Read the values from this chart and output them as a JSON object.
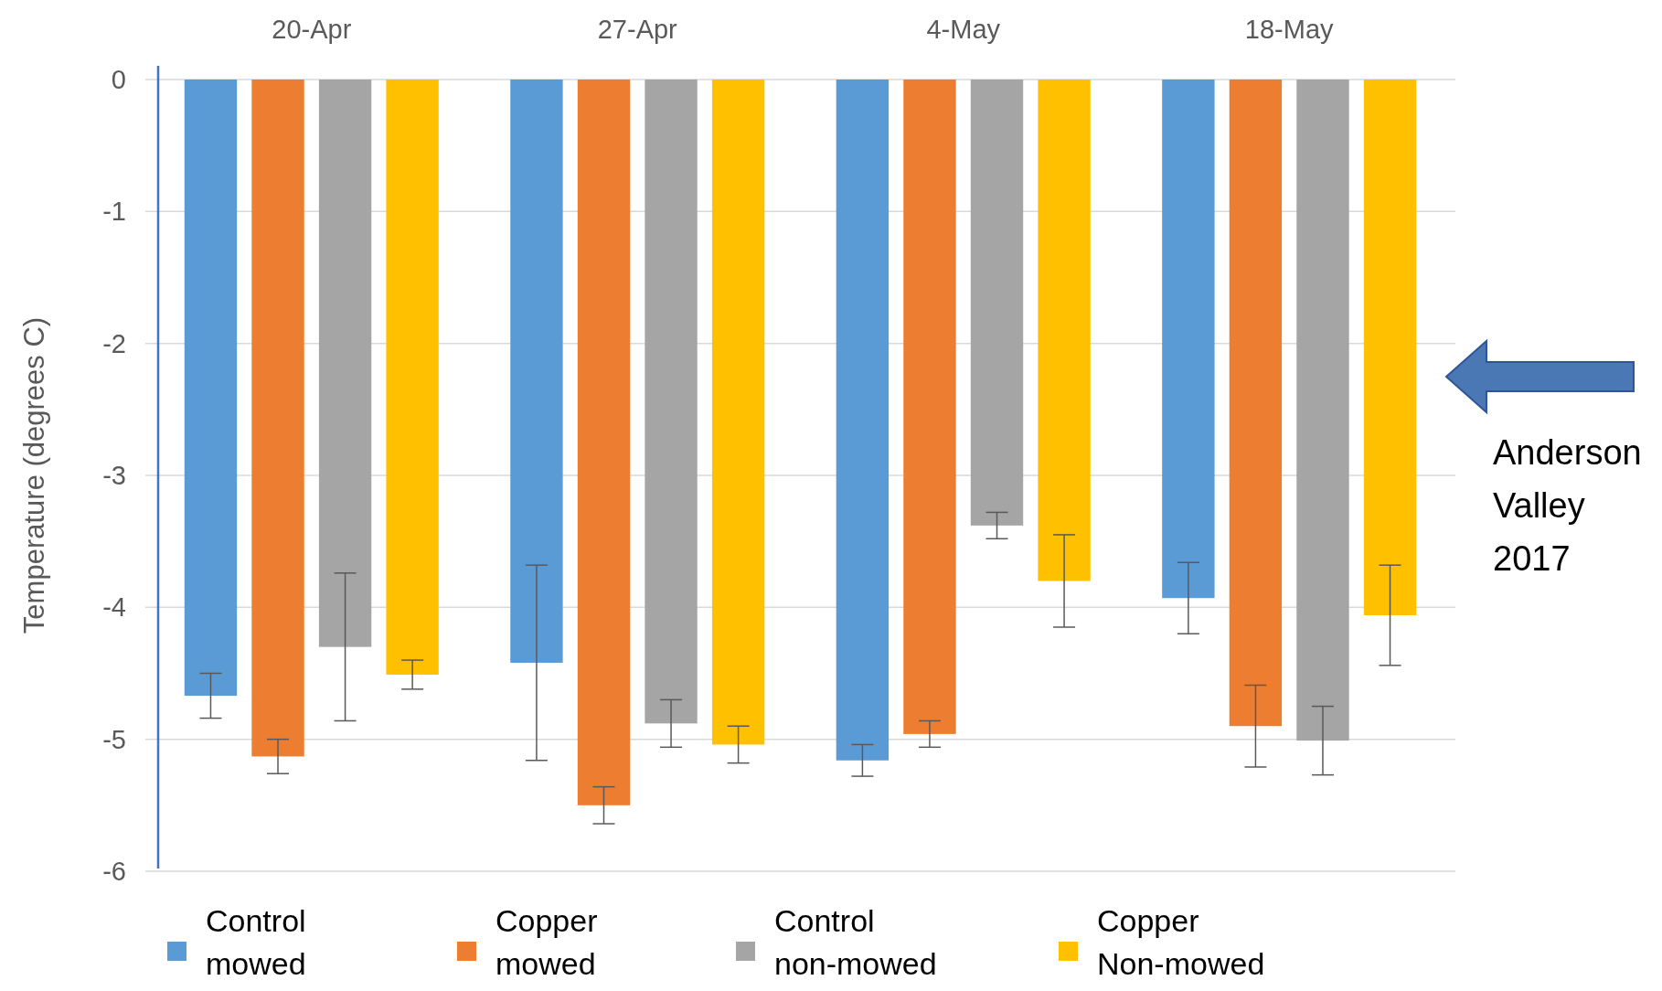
{
  "chart_data": {
    "type": "bar",
    "ylabel": "Temperature (degrees C)",
    "categories": [
      "20-Apr",
      "27-Apr",
      "4-May",
      "18-May"
    ],
    "series": [
      {
        "name": "Control mowed",
        "color": "#5b9bd5",
        "values": [
          -4.67,
          -4.42,
          -5.16,
          -3.93
        ],
        "errors": [
          0.17,
          0.74,
          0.12,
          0.27
        ]
      },
      {
        "name": "Copper mowed",
        "color": "#ed7d31",
        "values": [
          -5.13,
          -5.5,
          -4.96,
          -4.9
        ],
        "errors": [
          0.13,
          0.14,
          0.1,
          0.31
        ]
      },
      {
        "name": "Control non-mowed",
        "color": "#a5a5a5",
        "values": [
          -4.3,
          -4.88,
          -3.38,
          -5.01
        ],
        "errors": [
          0.56,
          0.18,
          0.1,
          0.26
        ]
      },
      {
        "name": "Copper Non-mowed",
        "color": "#ffc000",
        "values": [
          -4.51,
          -5.04,
          -3.8,
          -4.06
        ],
        "errors": [
          0.11,
          0.14,
          0.35,
          0.38
        ]
      }
    ],
    "ylim": [
      -6,
      0
    ],
    "yticks": [
      -6,
      -5,
      -4,
      -3,
      -2,
      -1,
      0
    ],
    "grid": "y",
    "legend": "bottom",
    "annotations": [
      "Anderson Valley 2017"
    ]
  }
}
